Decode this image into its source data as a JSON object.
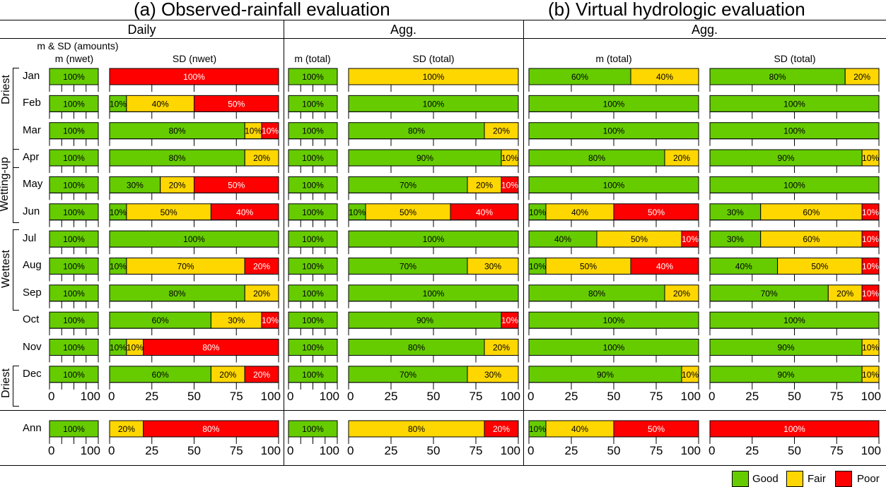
{
  "titles": {
    "a": "(a)  Observed-rainfall evaluation",
    "b": "(b)  Virtual hydrologic evaluation"
  },
  "sections": {
    "daily": "Daily",
    "agg_a": "Agg.",
    "agg_b": "Agg."
  },
  "column_headers": {
    "amounts_note": "m & SD (amounts)",
    "m_nwet": "m (nwet)",
    "sd_nwet": "SD (nwet)",
    "m_total_a": "m (total)",
    "sd_total_a": "SD (total)",
    "m_total_b": "m (total)",
    "sd_total_b": "SD (total)"
  },
  "groups": [
    {
      "label": "Driest",
      "months": [
        "Jan",
        "Feb"
      ]
    },
    {
      "label": "Wetting-up",
      "months": [
        "Apr",
        "May",
        "Jun"
      ]
    },
    {
      "label": "Wettest",
      "months": [
        "Jul",
        "Aug",
        "Sep"
      ]
    },
    {
      "label": "Driest",
      "months": [
        "Dec"
      ]
    }
  ],
  "legend": [
    {
      "label": "Good",
      "color": "#66CC00"
    },
    {
      "label": "Fair",
      "color": "#FFD700"
    },
    {
      "label": "Poor",
      "color": "#FF0000"
    }
  ],
  "chart_data": {
    "type": "bar",
    "stacked": true,
    "orientation": "horizontal",
    "units": "%",
    "categories": [
      "Jan",
      "Feb",
      "Mar",
      "Apr",
      "May",
      "Jun",
      "Jul",
      "Aug",
      "Sep",
      "Oct",
      "Nov",
      "Dec",
      "Ann"
    ],
    "series_names": [
      "Good",
      "Fair",
      "Poor"
    ],
    "colors": {
      "Good": "#66CC00",
      "Fair": "#FFD700",
      "Poor": "#FF0000"
    },
    "xlim": [
      0,
      100
    ],
    "xticks_wide": [
      "0",
      "25",
      "50",
      "75",
      "100"
    ],
    "xticks_narrow": [
      "0",
      "100"
    ],
    "panels": [
      {
        "id": "m_nwet",
        "title": "m (nwet)",
        "group": "(a) Daily",
        "values": [
          [
            100,
            0,
            0
          ],
          [
            100,
            0,
            0
          ],
          [
            100,
            0,
            0
          ],
          [
            100,
            0,
            0
          ],
          [
            100,
            0,
            0
          ],
          [
            100,
            0,
            0
          ],
          [
            100,
            0,
            0
          ],
          [
            100,
            0,
            0
          ],
          [
            100,
            0,
            0
          ],
          [
            100,
            0,
            0
          ],
          [
            100,
            0,
            0
          ],
          [
            100,
            0,
            0
          ],
          [
            100,
            0,
            0
          ]
        ]
      },
      {
        "id": "sd_nwet",
        "title": "SD (nwet)",
        "group": "(a) Daily",
        "values": [
          [
            0,
            0,
            100
          ],
          [
            10,
            40,
            50
          ],
          [
            80,
            10,
            10
          ],
          [
            80,
            20,
            0
          ],
          [
            30,
            20,
            50
          ],
          [
            10,
            50,
            40
          ],
          [
            100,
            0,
            0
          ],
          [
            10,
            70,
            20
          ],
          [
            80,
            20,
            0
          ],
          [
            60,
            30,
            10
          ],
          [
            10,
            10,
            80
          ],
          [
            60,
            20,
            20
          ],
          [
            0,
            20,
            80
          ]
        ]
      },
      {
        "id": "m_total_a",
        "title": "m (total)",
        "group": "(a) Agg.",
        "values": [
          [
            100,
            0,
            0
          ],
          [
            100,
            0,
            0
          ],
          [
            100,
            0,
            0
          ],
          [
            100,
            0,
            0
          ],
          [
            100,
            0,
            0
          ],
          [
            100,
            0,
            0
          ],
          [
            100,
            0,
            0
          ],
          [
            100,
            0,
            0
          ],
          [
            100,
            0,
            0
          ],
          [
            100,
            0,
            0
          ],
          [
            100,
            0,
            0
          ],
          [
            100,
            0,
            0
          ],
          [
            100,
            0,
            0
          ]
        ]
      },
      {
        "id": "sd_total_a",
        "title": "SD (total)",
        "group": "(a) Agg.",
        "values": [
          [
            0,
            100,
            0
          ],
          [
            100,
            0,
            0
          ],
          [
            80,
            20,
            0
          ],
          [
            90,
            10,
            0
          ],
          [
            70,
            20,
            10
          ],
          [
            10,
            50,
            40
          ],
          [
            100,
            0,
            0
          ],
          [
            70,
            30,
            0
          ],
          [
            100,
            0,
            0
          ],
          [
            90,
            0,
            10
          ],
          [
            80,
            20,
            0
          ],
          [
            70,
            30,
            0
          ],
          [
            0,
            80,
            20
          ]
        ]
      },
      {
        "id": "m_total_b",
        "title": "m (total)",
        "group": "(b) Agg.",
        "values": [
          [
            60,
            40,
            0
          ],
          [
            100,
            0,
            0
          ],
          [
            100,
            0,
            0
          ],
          [
            80,
            20,
            0
          ],
          [
            100,
            0,
            0
          ],
          [
            10,
            40,
            50
          ],
          [
            40,
            50,
            10
          ],
          [
            10,
            50,
            40
          ],
          [
            80,
            20,
            0
          ],
          [
            100,
            0,
            0
          ],
          [
            100,
            0,
            0
          ],
          [
            90,
            10,
            0
          ],
          [
            10,
            40,
            50
          ]
        ]
      },
      {
        "id": "sd_total_b",
        "title": "SD (total)",
        "group": "(b) Agg.",
        "values": [
          [
            80,
            20,
            0
          ],
          [
            100,
            0,
            0
          ],
          [
            100,
            0,
            0
          ],
          [
            90,
            10,
            0
          ],
          [
            100,
            0,
            0
          ],
          [
            30,
            60,
            10
          ],
          [
            30,
            60,
            10
          ],
          [
            40,
            50,
            10
          ],
          [
            70,
            20,
            10
          ],
          [
            100,
            0,
            0
          ],
          [
            90,
            10,
            0
          ],
          [
            90,
            10,
            0
          ],
          [
            0,
            0,
            100
          ]
        ]
      }
    ]
  }
}
